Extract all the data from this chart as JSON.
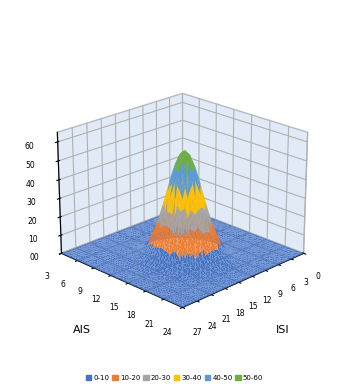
{
  "xlabel": "ISI",
  "ylabel": "AIS",
  "isi_ticks": [
    0,
    3,
    6,
    9,
    12,
    15,
    18,
    21,
    24,
    27
  ],
  "ais_ticks": [
    3,
    6,
    9,
    12,
    15,
    18,
    21,
    24
  ],
  "z_ticks": [
    0,
    10,
    20,
    30,
    40,
    50,
    60
  ],
  "z_label_vals": [
    "00",
    "10",
    "20",
    "30",
    "40",
    "50",
    "60"
  ],
  "legend_labels": [
    "0-10",
    "10-20",
    "20-30",
    "30-40",
    "40-50",
    "50-60"
  ],
  "legend_colors": [
    "#4472C4",
    "#ED7D31",
    "#A5A5A5",
    "#FFC000",
    "#5B9BD5",
    "#70AD47"
  ],
  "elev": 22,
  "azim": 45,
  "figsize": [
    3.49,
    3.91
  ],
  "dpi": 100,
  "floor_color": "#4472C4",
  "pane_color": "#C5D9F1",
  "zlim": [
    0,
    65
  ],
  "peak_isi": 15,
  "peak_ais": 15,
  "peak_val": 58
}
